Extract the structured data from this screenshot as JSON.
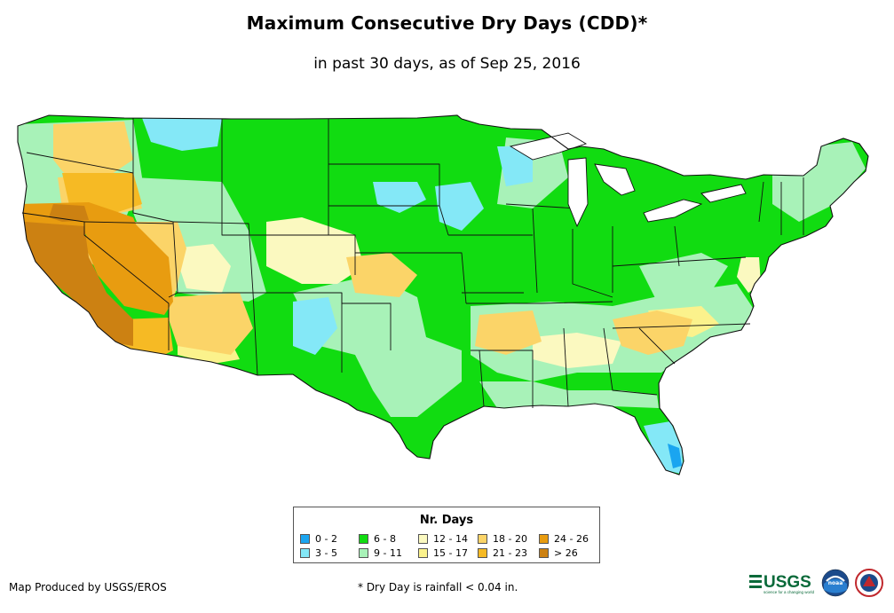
{
  "header": {
    "title": "Maximum Consecutive Dry Days (CDD)*",
    "subtitle": "in past 30 days, as of Sep 25, 2016"
  },
  "legend": {
    "title": "Nr. Days",
    "items": [
      {
        "label": "0 - 2",
        "color": "#1aa5f0"
      },
      {
        "label": "3 - 5",
        "color": "#84e8f7"
      },
      {
        "label": "6 - 8",
        "color": "#11dc11"
      },
      {
        "label": "9 - 11",
        "color": "#a8f2b8"
      },
      {
        "label": "12 - 14",
        "color": "#fbf9c0"
      },
      {
        "label": "15 - 17",
        "color": "#fbf28c"
      },
      {
        "label": "18 - 20",
        "color": "#fbd468"
      },
      {
        "label": "21 - 23",
        "color": "#f6ba24"
      },
      {
        "label": "24 - 26",
        "color": "#e89c10"
      },
      {
        "label": "> 26",
        "color": "#cc8112"
      }
    ]
  },
  "footer": {
    "credit": "Map Produced by USGS/EROS",
    "footnote": "* Dry Day is rainfall < 0.04 in."
  },
  "logos": {
    "usgs_text": "USGS",
    "usgs_tagline": "science for a changing world",
    "noaa_text": "noaa"
  }
}
